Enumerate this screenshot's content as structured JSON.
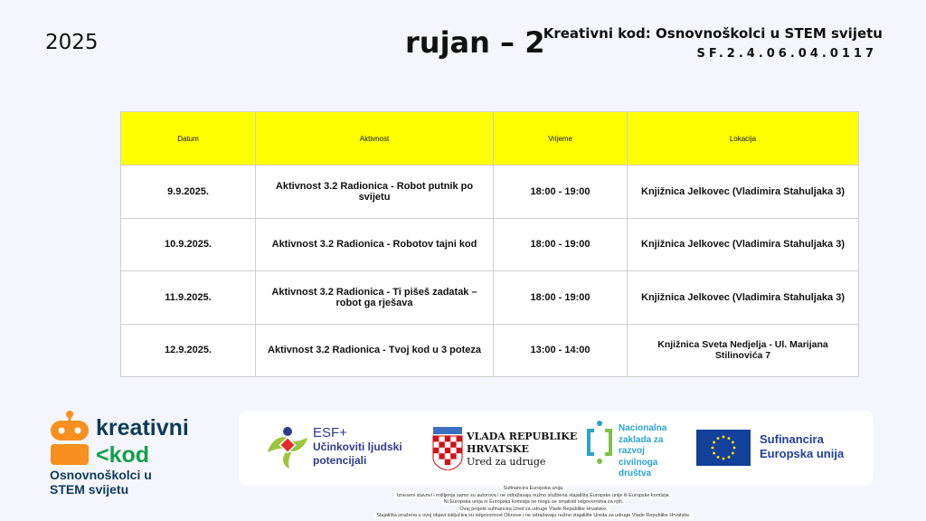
{
  "header": {
    "year": "2025",
    "title": "rujan – 2",
    "project": "Kreativni kod: Osnovnoškolci u STEM svijetu",
    "code": "SF.2.4.06.04.0117"
  },
  "table": {
    "columns": [
      "Datum",
      "Aktivnost",
      "Vrijeme",
      "Lokacija"
    ],
    "rows": [
      [
        "9.9.2025.",
        "Aktivnost 3.2 Radionica - Robot putnik po svijetu",
        "18:00 - 19:00",
        "Knjižnica Jelkovec (Vladimira Stahuljaka 3)"
      ],
      [
        "10.9.2025.",
        "Aktivnost 3.2 Radionica - Robotov tajni kod",
        "18:00 - 19:00",
        "Knjižnica Jelkovec (Vladimira Stahuljaka 3)"
      ],
      [
        "11.9.2025.",
        "Aktivnost 3.2 Radionica - Ti pišeš zadatak – robot ga rješava",
        "18:00 - 19:00",
        "Knjižnica Jelkovec (Vladimira Stahuljaka 3)"
      ],
      [
        "12.9.2025.",
        "Aktivnost 3.2 Radionica - Tvoj kod u 3 poteza",
        "13:00 - 14:00",
        "Knjižnica Sveta Nedjelja - Ul. Marijana Stilinovića 7"
      ]
    ],
    "header_color": "#ffff00"
  },
  "logo": {
    "line1": "kreativni",
    "line2": "<kod",
    "line3": "Osnovnoškolci u STEM svijetu",
    "robot_color": "#f7901e"
  },
  "partners": {
    "esf": {
      "title": "ESF+",
      "sub1": "Učinkoviti ljudski",
      "sub2": "potencijali"
    },
    "vlada": {
      "l1": "VLADA REPUBLIKE",
      "l2": "HRVATSKE",
      "l3": "Ured za udruge"
    },
    "nz": {
      "l1": "Nacionalna",
      "l2": "zaklada za",
      "l3": "razvoj",
      "l4": "civilnoga",
      "l5": "društva"
    },
    "eu": {
      "l1": "Sufinancira",
      "l2": "Europska unija"
    }
  },
  "disclaimer": [
    "Sufinancira Europska unija.",
    "Izneseni stavovi i mišljenja samo su autorova i ne odražavaju nužno službena stajališta Europske unije ili Europske komisije.",
    "Ni Europska unija ni Europska komisija ne mogu se smatrati odgovornima za njih.",
    "Ovaj projekt sufinancira Ured za udruge Vlade Republike Hrvatske.",
    "Stajališta izražena u ovoj objavi isključiva su odgovornost Obnove i ne odražavaju nužno stajalište Ureda za udruge Vlade Republike Hrvatske."
  ]
}
